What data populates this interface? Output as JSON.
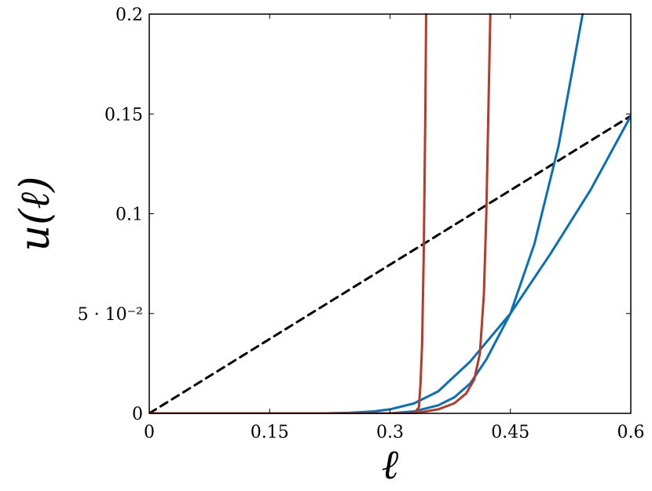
{
  "chart_data": {
    "type": "line",
    "xlabel": "ℓ",
    "ylabel": "u(ℓ)",
    "xlim": [
      0,
      0.6
    ],
    "ylim": [
      0,
      0.2
    ],
    "grid": false,
    "legend": "none",
    "x_ticks": [
      {
        "value": 0,
        "label": "0"
      },
      {
        "value": 0.15,
        "label": "0.15"
      },
      {
        "value": 0.3,
        "label": "0.3"
      },
      {
        "value": 0.45,
        "label": "0.45"
      },
      {
        "value": 0.6,
        "label": "0.6"
      }
    ],
    "y_ticks": [
      {
        "value": 0,
        "label": "0"
      },
      {
        "value": 0.05,
        "label": "5 · 10⁻²"
      },
      {
        "value": 0.1,
        "label": "0.1"
      },
      {
        "value": 0.15,
        "label": "0.15"
      },
      {
        "value": 0.2,
        "label": "0.2"
      }
    ],
    "colors": {
      "blue": "#0b6fb8",
      "red": "#b83a28",
      "black": "#000000"
    },
    "series": [
      {
        "color": "#000000",
        "style": "dashed",
        "x": [
          0,
          0.6
        ],
        "y": [
          0,
          0.149
        ]
      },
      {
        "color": "#0b6fb8",
        "style": "solid",
        "x": [
          0,
          0.22,
          0.25,
          0.28,
          0.3,
          0.33,
          0.36,
          0.4,
          0.45,
          0.5,
          0.55,
          0.6
        ],
        "y": [
          0,
          0,
          0.0003,
          0.001,
          0.002,
          0.005,
          0.011,
          0.026,
          0.05,
          0.08,
          0.112,
          0.149
        ]
      },
      {
        "color": "#0b6fb8",
        "style": "solid",
        "x": [
          0,
          0.3,
          0.33,
          0.36,
          0.38,
          0.4,
          0.42,
          0.45,
          0.48,
          0.51,
          0.54
        ],
        "y": [
          0,
          0,
          0.001,
          0.004,
          0.008,
          0.015,
          0.027,
          0.05,
          0.085,
          0.134,
          0.2
        ]
      },
      {
        "color": "#b83a28",
        "style": "solid",
        "x": [
          0,
          0.33,
          0.336,
          0.338,
          0.34,
          0.342,
          0.344,
          0.345
        ],
        "y": [
          0,
          0,
          0.003,
          0.015,
          0.035,
          0.08,
          0.15,
          0.2
        ]
      },
      {
        "color": "#b83a28",
        "style": "solid",
        "x": [
          0,
          0.33,
          0.36,
          0.38,
          0.395,
          0.405,
          0.412,
          0.417,
          0.42,
          0.423,
          0.425
        ],
        "y": [
          0,
          0,
          0.002,
          0.005,
          0.01,
          0.017,
          0.03,
          0.06,
          0.1,
          0.16,
          0.2
        ]
      }
    ]
  }
}
